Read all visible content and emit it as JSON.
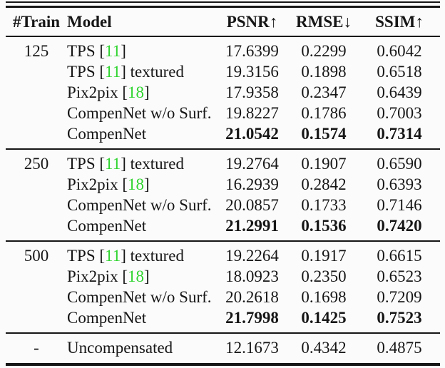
{
  "colors": {
    "text": "#161616",
    "citation_green": "#2fd42f",
    "rule": "#161616",
    "background": "#fbfbfb"
  },
  "table": {
    "columns": [
      "#Train",
      "Model",
      "PSNR↑",
      "RMSE↓",
      "SSIM↑"
    ],
    "sections": [
      {
        "train_count": "125",
        "rows": [
          {
            "model": {
              "pre": "TPS [",
              "cite": "11",
              "post": "]"
            },
            "psnr": "17.6399",
            "rmse": "0.2299",
            "ssim": "0.6042",
            "best": false
          },
          {
            "model": {
              "pre": "TPS [",
              "cite": "11",
              "post": "] textured"
            },
            "psnr": "19.3156",
            "rmse": "0.1898",
            "ssim": "0.6518",
            "best": false
          },
          {
            "model": {
              "pre": "Pix2pix [",
              "cite": "18",
              "post": "]"
            },
            "psnr": "17.9358",
            "rmse": "0.2347",
            "ssim": "0.6439",
            "best": false
          },
          {
            "model": {
              "pre": "CompenNet w/o Surf.",
              "cite": "",
              "post": ""
            },
            "psnr": "19.8227",
            "rmse": "0.1786",
            "ssim": "0.7003",
            "best": false
          },
          {
            "model": {
              "pre": "CompenNet",
              "cite": "",
              "post": ""
            },
            "psnr": "21.0542",
            "rmse": "0.1574",
            "ssim": "0.7314",
            "best": true
          }
        ]
      },
      {
        "train_count": "250",
        "rows": [
          {
            "model": {
              "pre": "TPS [",
              "cite": "11",
              "post": "] textured"
            },
            "psnr": "19.2764",
            "rmse": "0.1907",
            "ssim": "0.6590",
            "best": false
          },
          {
            "model": {
              "pre": "Pix2pix [",
              "cite": "18",
              "post": "]"
            },
            "psnr": "16.2939",
            "rmse": "0.2842",
            "ssim": "0.6393",
            "best": false
          },
          {
            "model": {
              "pre": "CompenNet w/o Surf.",
              "cite": "",
              "post": ""
            },
            "psnr": "20.0857",
            "rmse": "0.1733",
            "ssim": "0.7146",
            "best": false
          },
          {
            "model": {
              "pre": "CompenNet",
              "cite": "",
              "post": ""
            },
            "psnr": "21.2991",
            "rmse": "0.1536",
            "ssim": "0.7420",
            "best": true
          }
        ]
      },
      {
        "train_count": "500",
        "rows": [
          {
            "model": {
              "pre": "TPS [",
              "cite": "11",
              "post": "] textured"
            },
            "psnr": "19.2264",
            "rmse": "0.1917",
            "ssim": "0.6615",
            "best": false
          },
          {
            "model": {
              "pre": "Pix2pix [",
              "cite": "18",
              "post": "]"
            },
            "psnr": "18.0923",
            "rmse": "0.2350",
            "ssim": "0.6523",
            "best": false
          },
          {
            "model": {
              "pre": "CompenNet w/o Surf.",
              "cite": "",
              "post": ""
            },
            "psnr": "20.2618",
            "rmse": "0.1698",
            "ssim": "0.7209",
            "best": false
          },
          {
            "model": {
              "pre": "CompenNet",
              "cite": "",
              "post": ""
            },
            "psnr": "21.7998",
            "rmse": "0.1425",
            "ssim": "0.7523",
            "best": true
          }
        ]
      },
      {
        "train_count": "-",
        "rows": [
          {
            "model": {
              "pre": "Uncompensated",
              "cite": "",
              "post": ""
            },
            "psnr": "12.1673",
            "rmse": "0.4342",
            "ssim": "0.4875",
            "best": false
          }
        ]
      }
    ]
  }
}
